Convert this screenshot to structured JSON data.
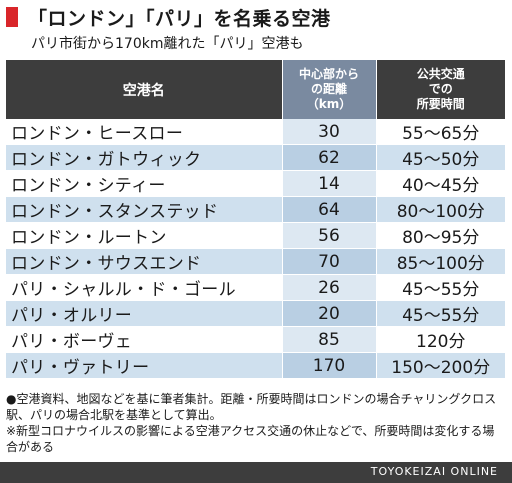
{
  "title": "「ロンドン」「パリ」を名乗る空港",
  "subtitle": "パリ市街から170km離れた「パリ」空港も",
  "table": {
    "headers": {
      "name": "空港名",
      "distance": [
        "中心部から",
        "の距離",
        "（km）"
      ],
      "time": [
        "公共交通",
        "での",
        "所要時間"
      ]
    },
    "rows": [
      {
        "name": "ロンドン・ヒースロー",
        "distance": "30",
        "time": "55〜65分"
      },
      {
        "name": "ロンドン・ガトウィック",
        "distance": "62",
        "time": "45〜50分"
      },
      {
        "name": "ロンドン・シティー",
        "distance": "14",
        "time": "40〜45分"
      },
      {
        "name": "ロンドン・スタンステッド",
        "distance": "64",
        "time": "80〜100分"
      },
      {
        "name": "ロンドン・ルートン",
        "distance": "56",
        "time": "80〜95分"
      },
      {
        "name": "ロンドン・サウスエンド",
        "distance": "70",
        "time": "85〜100分"
      },
      {
        "name": "パリ・シャルル・ド・ゴール",
        "distance": "26",
        "time": "45〜55分"
      },
      {
        "name": "パリ・オルリー",
        "distance": "20",
        "time": "45〜55分"
      },
      {
        "name": "パリ・ボーヴェ",
        "distance": "85",
        "time": "120分"
      },
      {
        "name": "パリ・ヴァトリー",
        "distance": "170",
        "time": "150〜200分"
      }
    ]
  },
  "notes": [
    "●空港資料、地図などを基に筆者集計。距離・所要時間はロンドンの場合チャリングクロス駅、パリの場合北駅を基準として算出。",
    "※新型コロナウイルスの影響による空港アクセス交通の休止などで、所要時間は変化する場合がある"
  ],
  "footer": "TOYOKEIZAI ONLINE",
  "colors": {
    "accent": "#d9262a",
    "header": "#3d3d3d",
    "distance_header": "#7a8aa0",
    "row_alt": "#cfe0ee"
  }
}
